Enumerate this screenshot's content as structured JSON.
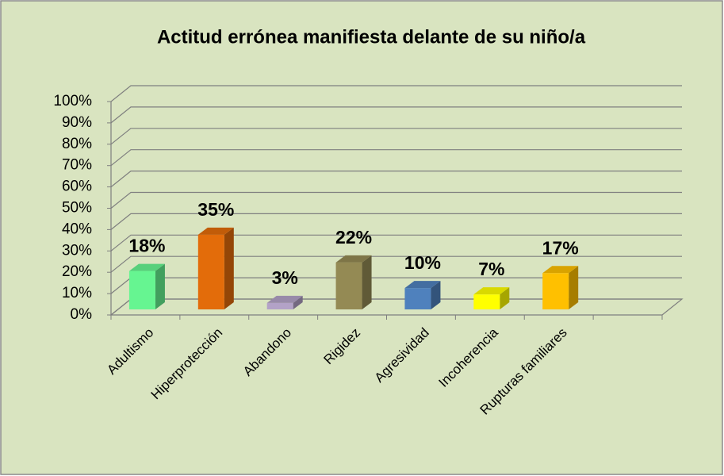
{
  "chart_data": {
    "type": "bar3d",
    "title": "Actitud errónea  manifiesta delante de su niño/a",
    "categories": [
      "Adultismo",
      "Hiperprotección",
      "Abandono",
      "Rigidez",
      "Agresividad",
      "Incoherencia",
      "Rupturas familiares",
      null
    ],
    "values": [
      18,
      35,
      3,
      22,
      10,
      7,
      17,
      null
    ],
    "value_labels": [
      "18%",
      "35%",
      "3%",
      "22%",
      "10%",
      "7%",
      "17%",
      null
    ],
    "colors": [
      "#66f591",
      "#e36c0a",
      "#b3a2c7",
      "#948a54",
      "#4f81bd",
      "#ffff00",
      "#ffc000",
      null
    ],
    "ylim": [
      0,
      100
    ],
    "yticks": [
      {
        "value": 0,
        "label": "0%"
      },
      {
        "value": 10,
        "label": "10%"
      },
      {
        "value": 20,
        "label": "20%"
      },
      {
        "value": 30,
        "label": "30%"
      },
      {
        "value": 40,
        "label": "40%"
      },
      {
        "value": 50,
        "label": "50%"
      },
      {
        "value": 60,
        "label": "60%"
      },
      {
        "value": 70,
        "label": "70%"
      },
      {
        "value": 80,
        "label": "80%"
      },
      {
        "value": 90,
        "label": "90%"
      },
      {
        "value": 100,
        "label": "100%"
      }
    ],
    "grid": true
  }
}
